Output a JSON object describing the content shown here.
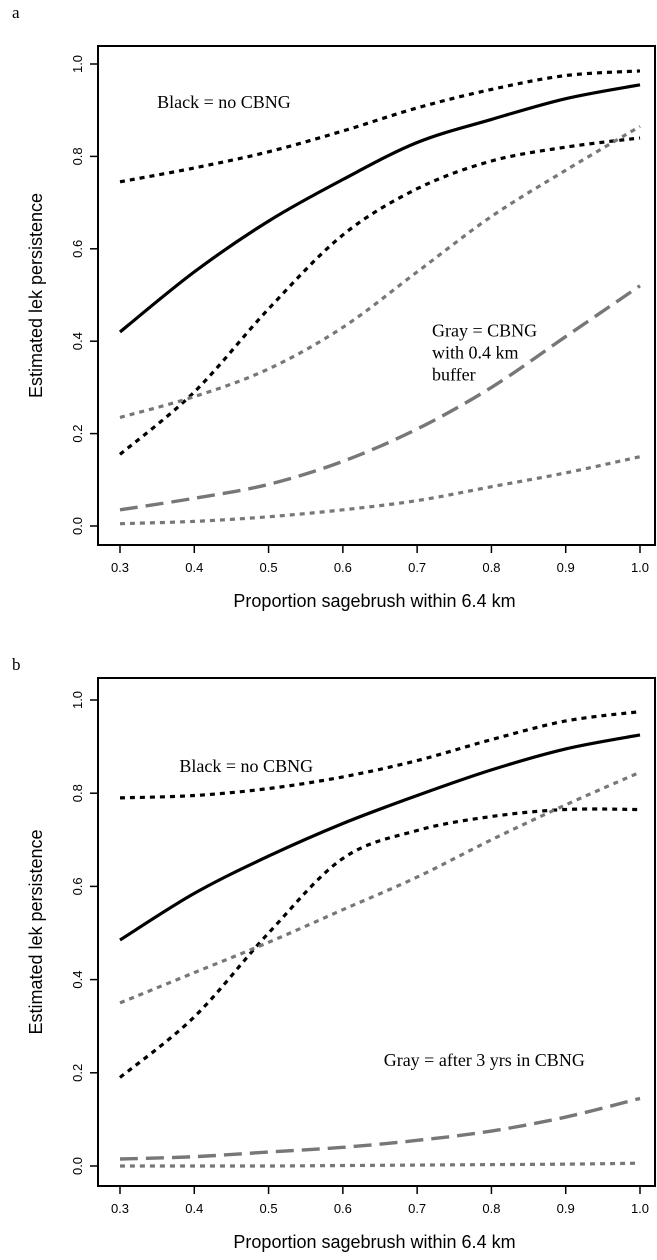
{
  "colors": {
    "black": "#000000",
    "gray": "#777777"
  },
  "chart_data": [
    {
      "panel": "a",
      "type": "line",
      "xlabel": "Proportion sagebrush within 6.4 km",
      "ylabel": "Estimated lek persistence",
      "xlim": [
        0.3,
        1.0
      ],
      "ylim": [
        0.0,
        1.0
      ],
      "x_ticks": [
        "0.3",
        "0.4",
        "0.5",
        "0.6",
        "0.7",
        "0.8",
        "0.9",
        "1.0"
      ],
      "y_ticks": [
        "0.0",
        "0.2",
        "0.4",
        "0.6",
        "0.8",
        "1.0"
      ],
      "annotations": [
        {
          "lines": [
            "Black = no CBNG"
          ],
          "x": 0.35,
          "y": 0.905
        },
        {
          "lines": [
            "Gray = CBNG",
            "with 0.4 km",
            "buffer"
          ],
          "x": 0.72,
          "y": 0.41
        }
      ],
      "series": [
        {
          "color": "black",
          "style": "solid",
          "x": [
            0.3,
            0.4,
            0.5,
            0.6,
            0.7,
            0.8,
            0.9,
            1.0
          ],
          "y": [
            0.42,
            0.55,
            0.66,
            0.75,
            0.83,
            0.88,
            0.925,
            0.955
          ]
        },
        {
          "color": "black",
          "style": "dotted",
          "x": [
            0.3,
            0.4,
            0.5,
            0.6,
            0.7,
            0.8,
            0.9,
            1.0
          ],
          "y": [
            0.745,
            0.775,
            0.81,
            0.855,
            0.905,
            0.945,
            0.975,
            0.985
          ]
        },
        {
          "color": "black",
          "style": "dotted",
          "x": [
            0.3,
            0.4,
            0.5,
            0.6,
            0.7,
            0.8,
            0.9,
            1.0
          ],
          "y": [
            0.155,
            0.29,
            0.47,
            0.63,
            0.73,
            0.79,
            0.82,
            0.84
          ]
        },
        {
          "color": "gray",
          "style": "dotted",
          "x": [
            0.3,
            0.4,
            0.5,
            0.6,
            0.7,
            0.8,
            0.9,
            1.0
          ],
          "y": [
            0.235,
            0.28,
            0.34,
            0.43,
            0.55,
            0.67,
            0.77,
            0.865
          ]
        },
        {
          "color": "gray",
          "style": "dashed",
          "x": [
            0.3,
            0.4,
            0.5,
            0.6,
            0.7,
            0.8,
            0.9,
            1.0
          ],
          "y": [
            0.035,
            0.06,
            0.09,
            0.14,
            0.21,
            0.3,
            0.41,
            0.52
          ]
        },
        {
          "color": "gray",
          "style": "dotted",
          "x": [
            0.3,
            0.4,
            0.5,
            0.6,
            0.7,
            0.8,
            0.9,
            1.0
          ],
          "y": [
            0.005,
            0.01,
            0.02,
            0.035,
            0.055,
            0.085,
            0.115,
            0.15
          ]
        }
      ]
    },
    {
      "panel": "b",
      "type": "line",
      "xlabel": "Proportion sagebrush within 6.4 km",
      "ylabel": "Estimated lek persistence",
      "xlim": [
        0.3,
        1.0
      ],
      "ylim": [
        0.0,
        1.0
      ],
      "x_ticks": [
        "0.3",
        "0.4",
        "0.5",
        "0.6",
        "0.7",
        "0.8",
        "0.9",
        "1.0"
      ],
      "y_ticks": [
        "0.0",
        "0.2",
        "0.4",
        "0.6",
        "0.8",
        "1.0"
      ],
      "annotations": [
        {
          "lines": [
            "Black = no CBNG"
          ],
          "x": 0.38,
          "y": 0.845
        },
        {
          "lines": [
            "Gray = after 3 yrs in CBNG"
          ],
          "x": 0.655,
          "y": 0.215
        }
      ],
      "series": [
        {
          "color": "black",
          "style": "solid",
          "x": [
            0.3,
            0.4,
            0.5,
            0.6,
            0.7,
            0.8,
            0.9,
            1.0
          ],
          "y": [
            0.485,
            0.585,
            0.665,
            0.735,
            0.795,
            0.85,
            0.895,
            0.925
          ]
        },
        {
          "color": "black",
          "style": "dotted",
          "x": [
            0.3,
            0.4,
            0.5,
            0.6,
            0.7,
            0.8,
            0.9,
            1.0
          ],
          "y": [
            0.79,
            0.795,
            0.81,
            0.835,
            0.87,
            0.915,
            0.955,
            0.975
          ]
        },
        {
          "color": "black",
          "style": "dotted",
          "x": [
            0.3,
            0.4,
            0.5,
            0.6,
            0.7,
            0.8,
            0.9,
            1.0
          ],
          "y": [
            0.19,
            0.32,
            0.5,
            0.66,
            0.72,
            0.75,
            0.765,
            0.765
          ]
        },
        {
          "color": "gray",
          "style": "dotted",
          "x": [
            0.3,
            0.4,
            0.5,
            0.6,
            0.7,
            0.8,
            0.9,
            1.0
          ],
          "y": [
            0.35,
            0.415,
            0.48,
            0.55,
            0.62,
            0.7,
            0.775,
            0.845
          ]
        },
        {
          "color": "gray",
          "style": "dashed",
          "x": [
            0.3,
            0.4,
            0.5,
            0.6,
            0.7,
            0.8,
            0.9,
            1.0
          ],
          "y": [
            0.015,
            0.02,
            0.03,
            0.04,
            0.055,
            0.075,
            0.105,
            0.145
          ]
        },
        {
          "color": "gray",
          "style": "dotted",
          "x": [
            0.3,
            0.4,
            0.5,
            0.6,
            0.7,
            0.8,
            0.9,
            1.0
          ],
          "y": [
            0.0,
            0.0,
            0.0,
            0.001,
            0.002,
            0.003,
            0.004,
            0.006
          ]
        }
      ]
    }
  ]
}
